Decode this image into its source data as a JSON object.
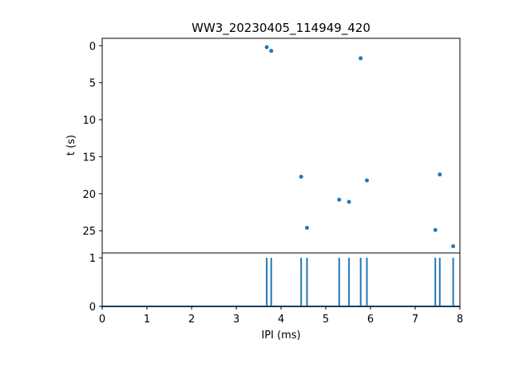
{
  "chart_data": [
    {
      "type": "scatter",
      "title": "WW3_20230405_114949_420",
      "xlabel": "",
      "ylabel": "t (s)",
      "xlim": [
        0,
        8
      ],
      "ylim": [
        28.0,
        -1.0
      ],
      "y_inverted": true,
      "yticks": [
        0,
        5,
        10,
        15,
        20,
        25
      ],
      "color": "#1f77b4",
      "points": [
        {
          "x": 3.68,
          "y": 0.2
        },
        {
          "x": 3.78,
          "y": 0.7
        },
        {
          "x": 5.78,
          "y": 1.7
        },
        {
          "x": 4.45,
          "y": 17.7
        },
        {
          "x": 5.92,
          "y": 18.2
        },
        {
          "x": 7.55,
          "y": 17.4
        },
        {
          "x": 5.3,
          "y": 20.8
        },
        {
          "x": 5.52,
          "y": 21.1
        },
        {
          "x": 4.58,
          "y": 24.6
        },
        {
          "x": 7.45,
          "y": 24.9
        },
        {
          "x": 7.85,
          "y": 27.1
        }
      ]
    },
    {
      "type": "line",
      "title": "",
      "xlabel": "IPI (ms)",
      "ylabel": "",
      "xlim": [
        0,
        8
      ],
      "ylim": [
        0,
        1.1
      ],
      "xticks": [
        0,
        1,
        2,
        3,
        4,
        5,
        6,
        7,
        8
      ],
      "yticks": [
        0,
        1
      ],
      "color": "#1f77b4",
      "spikes_x": [
        3.68,
        3.78,
        4.45,
        4.58,
        5.3,
        5.52,
        5.78,
        5.92,
        7.45,
        7.55,
        7.85
      ],
      "spike_height": 1
    }
  ]
}
